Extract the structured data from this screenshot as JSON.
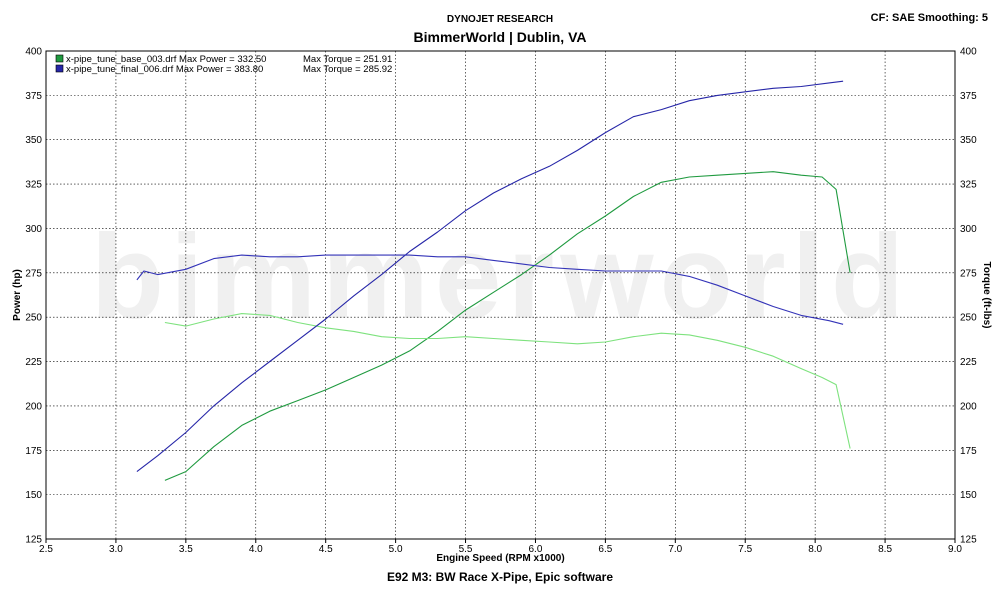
{
  "header": {
    "organization": "DYNOJET RESEARCH",
    "location": "BimmerWorld | Dublin, VA",
    "settings": "CF: SAE  Smoothing: 5"
  },
  "footer": {
    "title": "E92 M3: BW Race X-Pipe, Epic software"
  },
  "watermark": "bimmerworld",
  "chart_data": {
    "type": "line",
    "xlabel": "Engine Speed (RPM x1000)",
    "ylabel_left": "Power (hp)",
    "ylabel_right": "Torque (ft-lbs)",
    "xlim": [
      2.5,
      9.0
    ],
    "ylim": [
      125,
      400
    ],
    "x_ticks": [
      "2.5",
      "3.0",
      "3.5",
      "4.0",
      "4.5",
      "5.0",
      "5.5",
      "6.0",
      "6.5",
      "7.0",
      "7.5",
      "8.0",
      "8.5",
      "9.0"
    ],
    "y_ticks": [
      "125",
      "150",
      "175",
      "200",
      "225",
      "250",
      "275",
      "300",
      "325",
      "350",
      "375",
      "400"
    ],
    "grid": true,
    "legend_position": "top-left",
    "legend": [
      {
        "label": "x-pipe_tune_base_003.drf Max Power = 332.50",
        "torque_label": "Max Torque = 251.91",
        "color": "#1f9a3f"
      },
      {
        "label": "x-pipe_tune_final_006.drf Max Power = 383.80",
        "torque_label": "Max Torque = 285.92",
        "color": "#2626a8"
      }
    ],
    "series": [
      {
        "file": "x-pipe_tune_base_003.drf",
        "kind": "power",
        "color": "#1f9a3f",
        "x": [
          3.35,
          3.5,
          3.7,
          3.9,
          4.1,
          4.3,
          4.5,
          4.7,
          4.9,
          5.1,
          5.3,
          5.5,
          5.7,
          5.9,
          6.1,
          6.3,
          6.5,
          6.7,
          6.9,
          7.1,
          7.3,
          7.5,
          7.7,
          7.9,
          8.05,
          8.15,
          8.25
        ],
        "y": [
          158,
          163,
          177,
          189,
          197,
          203,
          209,
          216,
          223,
          231,
          242,
          254,
          264,
          274,
          285,
          297,
          307,
          318,
          326,
          329,
          330,
          331,
          332,
          330,
          329,
          322,
          275
        ]
      },
      {
        "file": "x-pipe_tune_base_003.drf",
        "kind": "torque",
        "color": "#7ee27e",
        "x": [
          3.35,
          3.5,
          3.7,
          3.9,
          4.1,
          4.3,
          4.5,
          4.7,
          4.9,
          5.1,
          5.3,
          5.5,
          5.7,
          5.9,
          6.1,
          6.3,
          6.5,
          6.7,
          6.9,
          7.1,
          7.3,
          7.5,
          7.7,
          7.9,
          8.05,
          8.15,
          8.25
        ],
        "y": [
          247,
          245,
          249,
          252,
          251,
          247,
          244,
          242,
          239,
          238,
          238,
          239,
          238,
          237,
          236,
          235,
          236,
          239,
          241,
          240,
          237,
          233,
          228,
          221,
          216,
          212,
          176
        ]
      },
      {
        "file": "x-pipe_tune_final_006.drf",
        "kind": "power",
        "color": "#2626a8",
        "x": [
          3.15,
          3.3,
          3.5,
          3.7,
          3.9,
          4.1,
          4.3,
          4.5,
          4.7,
          4.9,
          5.1,
          5.3,
          5.5,
          5.7,
          5.9,
          6.1,
          6.3,
          6.5,
          6.7,
          6.9,
          7.1,
          7.3,
          7.5,
          7.7,
          7.9,
          8.1,
          8.2
        ],
        "y": [
          163,
          172,
          185,
          200,
          213,
          225,
          237,
          249,
          262,
          274,
          287,
          298,
          310,
          320,
          328,
          335,
          344,
          354,
          363,
          367,
          372,
          375,
          377,
          379,
          380,
          382,
          383
        ]
      },
      {
        "file": "x-pipe_tune_final_006.drf",
        "kind": "torque",
        "color": "#3333b8",
        "x": [
          3.15,
          3.2,
          3.3,
          3.5,
          3.7,
          3.9,
          4.1,
          4.3,
          4.5,
          4.7,
          4.9,
          5.1,
          5.3,
          5.5,
          5.7,
          5.9,
          6.1,
          6.3,
          6.5,
          6.7,
          6.9,
          7.1,
          7.3,
          7.5,
          7.7,
          7.9,
          8.1,
          8.2
        ],
        "y": [
          271,
          276,
          274,
          277,
          283,
          285,
          284,
          284,
          285,
          285,
          285,
          285,
          284,
          284,
          282,
          280,
          278,
          277,
          276,
          276,
          276,
          273,
          268,
          262,
          256,
          251,
          248,
          246
        ]
      }
    ]
  }
}
